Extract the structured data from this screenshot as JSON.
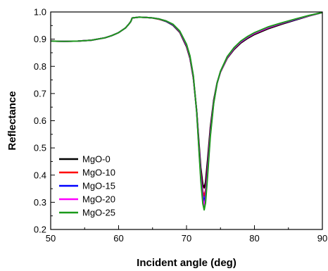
{
  "chart_data": {
    "type": "line",
    "title": "",
    "xlabel": "Incident angle (deg)",
    "ylabel": "Reflectance",
    "xlim": [
      50,
      90
    ],
    "ylim": [
      0.2,
      1.0
    ],
    "xticks": [
      "50",
      "60",
      "70",
      "80",
      "90"
    ],
    "yticks": [
      "0.2",
      "0.3",
      "0.4",
      "0.5",
      "0.6",
      "0.7",
      "0.8",
      "0.9",
      "1.0"
    ],
    "x": [
      50,
      52,
      54,
      56,
      58,
      59,
      60,
      61,
      61.5,
      61.8,
      62,
      63,
      64,
      65,
      66,
      67,
      68,
      69,
      70,
      70.5,
      71,
      71.5,
      71.8,
      72.1,
      72.4,
      72.6,
      72.8,
      73.1,
      73.5,
      74,
      74.5,
      75,
      76,
      77,
      78,
      79,
      80,
      82,
      84,
      86,
      88,
      90
    ],
    "series": [
      {
        "name": "MgO-0",
        "color": "#000000",
        "values": [
          0.893,
          0.892,
          0.893,
          0.896,
          0.905,
          0.913,
          0.924,
          0.941,
          0.955,
          0.965,
          0.978,
          0.981,
          0.98,
          0.978,
          0.973,
          0.965,
          0.951,
          0.925,
          0.872,
          0.83,
          0.757,
          0.636,
          0.53,
          0.428,
          0.366,
          0.353,
          0.375,
          0.455,
          0.574,
          0.676,
          0.74,
          0.779,
          0.83,
          0.862,
          0.886,
          0.903,
          0.917,
          0.938,
          0.955,
          0.97,
          0.985,
          0.998
        ]
      },
      {
        "name": "MgO-10",
        "color": "#ff0000",
        "values": [
          0.893,
          0.892,
          0.893,
          0.896,
          0.905,
          0.913,
          0.924,
          0.941,
          0.955,
          0.965,
          0.978,
          0.981,
          0.98,
          0.978,
          0.973,
          0.966,
          0.953,
          0.927,
          0.875,
          0.833,
          0.76,
          0.633,
          0.52,
          0.41,
          0.34,
          0.323,
          0.345,
          0.43,
          0.56,
          0.67,
          0.738,
          0.779,
          0.832,
          0.865,
          0.889,
          0.906,
          0.92,
          0.941,
          0.957,
          0.972,
          0.986,
          0.998
        ]
      },
      {
        "name": "MgO-15",
        "color": "#0000ff",
        "values": [
          0.893,
          0.892,
          0.893,
          0.896,
          0.905,
          0.913,
          0.924,
          0.941,
          0.955,
          0.965,
          0.978,
          0.981,
          0.98,
          0.978,
          0.974,
          0.966,
          0.953,
          0.928,
          0.877,
          0.835,
          0.762,
          0.632,
          0.515,
          0.4,
          0.325,
          0.305,
          0.328,
          0.418,
          0.553,
          0.668,
          0.738,
          0.78,
          0.833,
          0.866,
          0.89,
          0.907,
          0.921,
          0.942,
          0.958,
          0.972,
          0.986,
          0.998
        ]
      },
      {
        "name": "MgO-20",
        "color": "#ff00ff",
        "values": [
          0.893,
          0.892,
          0.893,
          0.896,
          0.905,
          0.913,
          0.924,
          0.941,
          0.955,
          0.965,
          0.978,
          0.981,
          0.98,
          0.978,
          0.974,
          0.967,
          0.954,
          0.929,
          0.879,
          0.837,
          0.764,
          0.631,
          0.51,
          0.39,
          0.31,
          0.289,
          0.313,
          0.407,
          0.547,
          0.666,
          0.738,
          0.781,
          0.834,
          0.867,
          0.891,
          0.908,
          0.922,
          0.943,
          0.959,
          0.973,
          0.986,
          0.998
        ]
      },
      {
        "name": "MgO-25",
        "color": "#1a9a1a",
        "values": [
          0.893,
          0.892,
          0.893,
          0.896,
          0.905,
          0.913,
          0.924,
          0.941,
          0.955,
          0.965,
          0.978,
          0.981,
          0.98,
          0.978,
          0.974,
          0.967,
          0.955,
          0.93,
          0.881,
          0.839,
          0.766,
          0.63,
          0.505,
          0.38,
          0.295,
          0.272,
          0.298,
          0.396,
          0.541,
          0.664,
          0.738,
          0.782,
          0.836,
          0.869,
          0.893,
          0.91,
          0.924,
          0.945,
          0.96,
          0.974,
          0.987,
          0.998
        ]
      }
    ],
    "legend": {
      "position": "bottom-left"
    },
    "grid": false
  }
}
